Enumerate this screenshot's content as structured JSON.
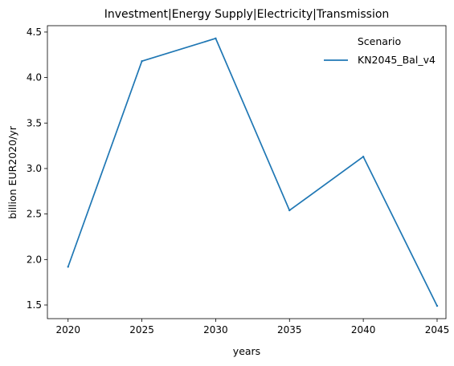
{
  "chart_data": {
    "type": "line",
    "title": "Investment|Energy Supply|Electricity|Transmission",
    "xlabel": "years",
    "ylabel": "billion EUR2020/yr",
    "x": [
      2020,
      2025,
      2030,
      2035,
      2040,
      2045
    ],
    "xticks": [
      "2020",
      "2025",
      "2030",
      "2035",
      "2040",
      "2045"
    ],
    "yticks": [
      "1.5",
      "2.0",
      "2.5",
      "3.0",
      "3.5",
      "4.0",
      "4.5"
    ],
    "xlim": [
      2018.6,
      2045.6
    ],
    "ylim": [
      1.35,
      4.57
    ],
    "grid": false,
    "legend": {
      "title": "Scenario",
      "placement": "top-right"
    },
    "series": [
      {
        "name": "KN2045_Bal_v4",
        "color": "#1f77b4",
        "values": [
          1.92,
          4.18,
          4.43,
          2.54,
          3.13,
          1.49
        ]
      }
    ]
  }
}
